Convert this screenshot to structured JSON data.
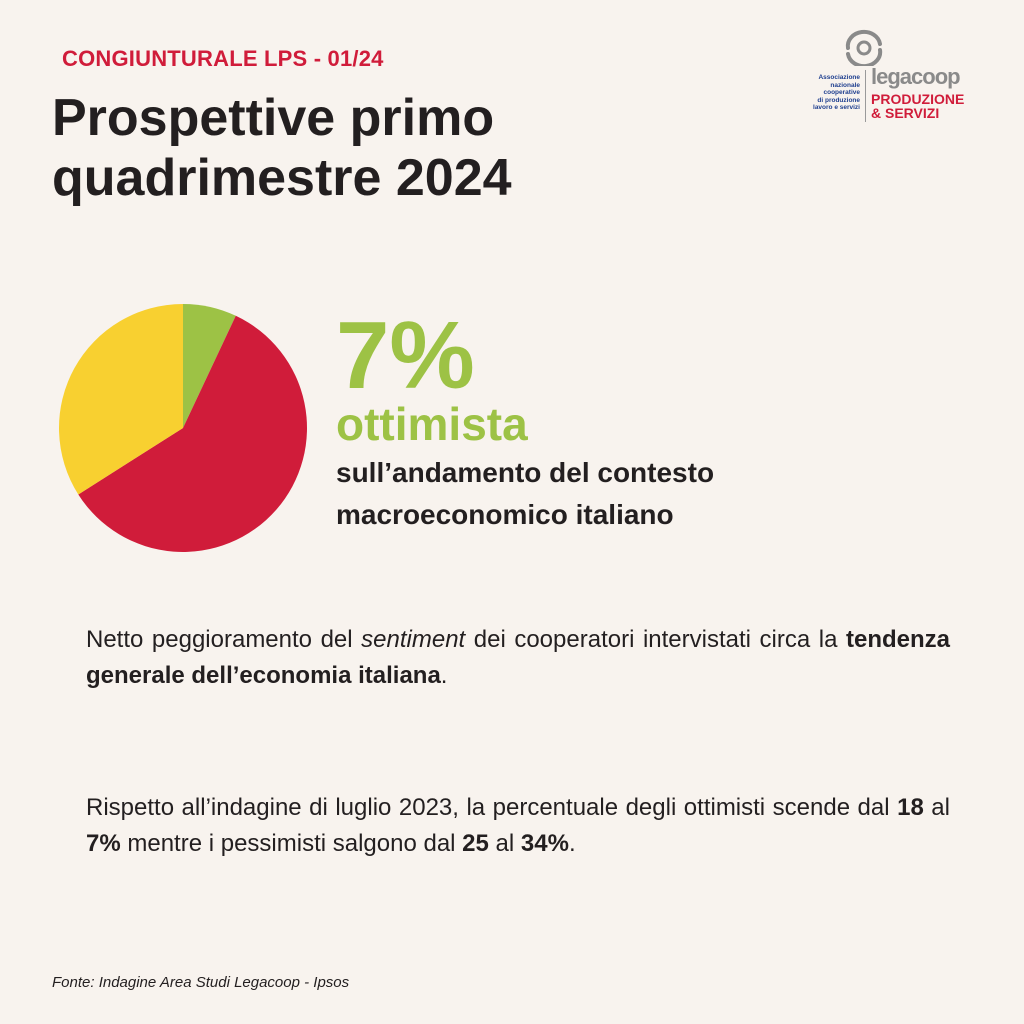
{
  "header": {
    "kicker": "CONGIUNTURALE LPS - 01/24",
    "title_line1": "Prospettive primo",
    "title_line2": "quadrimestre 2024"
  },
  "logo": {
    "assoc_lines": [
      "Associazione",
      "nazionale",
      "cooperative",
      "di produzione",
      "lavoro e servizi"
    ],
    "name": "legacoop",
    "sub_line1": "PRODUZIONE",
    "sub_line2": "& SERVIZI"
  },
  "chart_data": {
    "type": "pie",
    "slices": [
      {
        "value": 7,
        "color": "#9dc245"
      },
      {
        "value": 59,
        "color": "#d01c3a"
      },
      {
        "value": 34,
        "color": "#f8d030"
      }
    ]
  },
  "highlight": {
    "percent": "7%",
    "label": "ottimista",
    "desc_line1": "sull’andamento del contesto",
    "desc_line2": "macroeconomico italiano"
  },
  "body": {
    "p1": {
      "t1": "Netto peggioramento del ",
      "t2": "sentiment",
      "t3": " dei cooperatori intervistati circa la ",
      "t4": "tendenza generale dell’economia italiana",
      "t5": "."
    },
    "p2": {
      "t1": "Rispetto all’indagine di luglio 2023, la percentuale degli ottimisti scende dal ",
      "t2": "18",
      "t3": " al ",
      "t4": "7%",
      "t5": " mentre i pessimisti salgono dal ",
      "t6": "25",
      "t7": " al ",
      "t8": "34%",
      "t9": "."
    }
  },
  "footer": {
    "source": "Fonte: Indagine Area Studi Legacoop - Ipsos"
  }
}
